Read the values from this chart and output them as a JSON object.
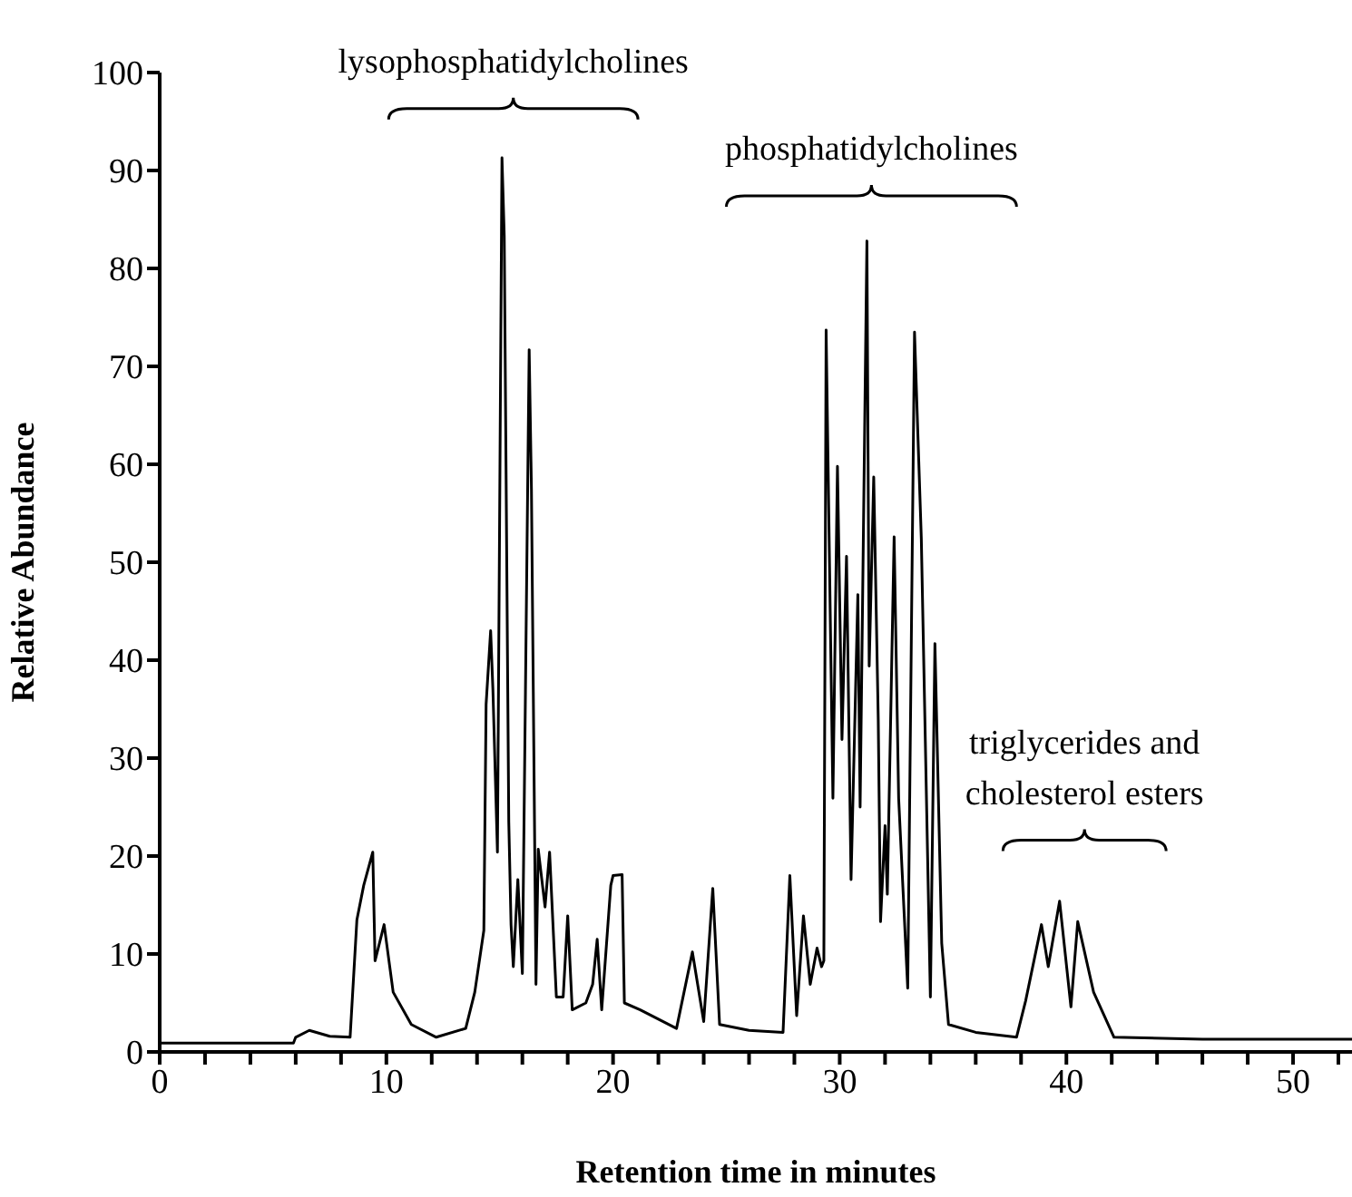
{
  "chart_data": {
    "type": "line",
    "xlabel": "Retention time in minutes",
    "ylabel": "Relative Abundance",
    "x": [
      0,
      5.9,
      6.0,
      6.6,
      7.5,
      8.4,
      8.7,
      9.0,
      9.4,
      9.5,
      9.9,
      10.3,
      11.1,
      12.2,
      13.5,
      13.9,
      14.3,
      14.4,
      14.6,
      14.7,
      14.9,
      15.1,
      15.2,
      15.4,
      15.5,
      15.6,
      15.8,
      16.0,
      16.3,
      16.4,
      16.6,
      16.7,
      17.0,
      17.2,
      17.5,
      17.8,
      18.0,
      18.2,
      18.8,
      19.1,
      19.3,
      19.5,
      19.9,
      20.0,
      20.4,
      20.5,
      21.2,
      22.8,
      23.5,
      24.0,
      24.4,
      24.7,
      26.0,
      27.5,
      27.8,
      28.1,
      28.4,
      28.7,
      29.0,
      29.2,
      29.3,
      29.4,
      29.7,
      29.9,
      30.1,
      30.3,
      30.5,
      30.8,
      30.9,
      31.2,
      31.3,
      31.5,
      31.7,
      31.8,
      32.0,
      32.1,
      32.4,
      32.6,
      33.0,
      33.3,
      33.6,
      34.0,
      34.2,
      34.5,
      34.8,
      36.0,
      37.8,
      38.2,
      38.9,
      39.2,
      39.7,
      40.2,
      40.5,
      41.2,
      42.1,
      46.0,
      52.6
    ],
    "series": [
      {
        "color": "#000000",
        "values": [
          0.9,
          0.9,
          1.5,
          2.2,
          1.6,
          1.5,
          13.5,
          17,
          20.4,
          9.3,
          13,
          6.1,
          2.8,
          1.5,
          2.4,
          6.1,
          12.4,
          35.5,
          43,
          37,
          20.4,
          91.3,
          83.3,
          23.5,
          13,
          8.7,
          17.6,
          8,
          71.7,
          57.4,
          6.9,
          20.7,
          14.8,
          20.4,
          5.6,
          5.6,
          13.9,
          4.3,
          5,
          6.9,
          11.5,
          4.3,
          17,
          18,
          18.1,
          5,
          4.3,
          2.4,
          10.2,
          3.1,
          16.7,
          2.8,
          2.2,
          2,
          18,
          3.7,
          13.9,
          6.9,
          10.6,
          8.7,
          9.3,
          73.7,
          25.9,
          59.8,
          31.9,
          50.6,
          17.6,
          46.7,
          25,
          82.8,
          39.4,
          58.7,
          33.9,
          13.3,
          23.1,
          16.1,
          52.6,
          25.9,
          6.5,
          73.5,
          52.4,
          5.6,
          41.7,
          11.1,
          2.8,
          2,
          1.5,
          5.2,
          13,
          8.7,
          15.4,
          4.6,
          13.3,
          6.1,
          1.5,
          1.3,
          1.3
        ]
      }
    ],
    "xlim": [
      0,
      52.6
    ],
    "ylim": [
      0,
      100
    ],
    "xticks": [
      0,
      {
        "value": 2,
        "label": null
      },
      {
        "value": 4,
        "label": null
      },
      {
        "value": 6,
        "label": null
      },
      {
        "value": 8,
        "label": null
      },
      10,
      {
        "value": 12,
        "label": null
      },
      {
        "value": 14,
        "label": null
      },
      {
        "value": 16,
        "label": null
      },
      {
        "value": 18,
        "label": null
      },
      20,
      {
        "value": 22,
        "label": null
      },
      {
        "value": 24,
        "label": null
      },
      {
        "value": 26,
        "label": null
      },
      {
        "value": 28,
        "label": null
      },
      30,
      {
        "value": 32,
        "label": null
      },
      {
        "value": 34,
        "label": null
      },
      {
        "value": 36,
        "label": null
      },
      {
        "value": 38,
        "label": null
      },
      40,
      {
        "value": 42,
        "label": null
      },
      {
        "value": 44,
        "label": null
      },
      {
        "value": 46,
        "label": null
      },
      {
        "value": 48,
        "label": null
      },
      50,
      {
        "value": 52,
        "label": null
      }
    ],
    "yticks": [
      0,
      10,
      20,
      30,
      40,
      50,
      60,
      70,
      80,
      90,
      100
    ],
    "annotations": [
      "lysophosphatidylcholines",
      "phosphatidylcholines",
      "triglycerides and cholesterol esters"
    ],
    "grid": false,
    "legend": false,
    "marker": "none",
    "line_style": "solid"
  }
}
